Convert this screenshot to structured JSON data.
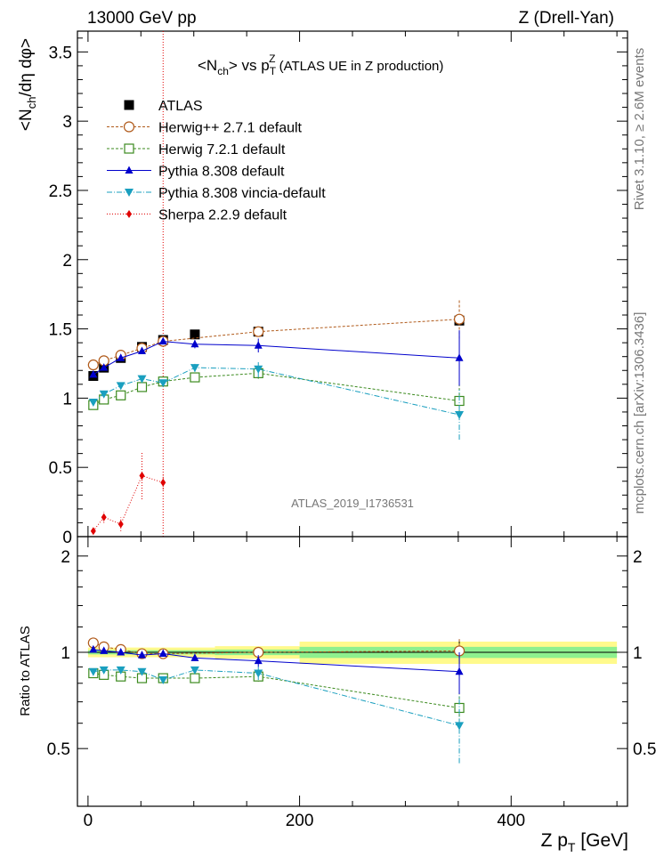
{
  "header": {
    "left": "13000 GeV pp",
    "right": "Z (Drell-Yan)"
  },
  "side_labels": {
    "rivet": "Rivet 3.1.10, ≥ 2.6M events",
    "mcplots": "mcplots.cern.ch [arXiv:1306.3436]"
  },
  "chart_data": [
    {
      "type": "scatter",
      "title": "<N_ch> vs p_T^Z (ATLAS UE in Z production)",
      "title_parts": {
        "a": "<N",
        "a_sub": "ch",
        "b": "> vs p",
        "b_sub": "T",
        "b_sup": "Z",
        "c": " (ATLAS UE in Z production)"
      },
      "ylabel": "<N_ch/dη dφ>",
      "ylabel_parts": {
        "a": "<N",
        "a_sub": "ch",
        "b": "/dη dφ>"
      },
      "analysis_label": "ATLAS_2019_I1736531",
      "xlim": [
        -10,
        510
      ],
      "ylim": [
        0,
        3.65
      ],
      "yticks": [
        "3.5",
        "3",
        "2.5",
        "2",
        "1.5",
        "1",
        "0.5",
        "0"
      ],
      "ytick_values": [
        3.5,
        3,
        2.5,
        2,
        1.5,
        1,
        0.5,
        0
      ],
      "grid": false,
      "legend_position": "top-left",
      "series": [
        {
          "name": "ATLAS",
          "color": "#000000",
          "marker": "square-filled",
          "line": "none",
          "x": [
            5,
            15,
            31,
            51,
            71,
            101,
            161,
            351
          ],
          "y": [
            1.16,
            1.22,
            1.29,
            1.37,
            1.42,
            1.46,
            1.48,
            1.56
          ]
        },
        {
          "name": "Herwig++ 2.7.1 default",
          "color": "#b05a1a",
          "marker": "circle-open",
          "line": "dashed",
          "x": [
            5,
            15,
            31,
            51,
            71,
            161,
            351
          ],
          "y": [
            1.24,
            1.27,
            1.31,
            1.36,
            1.41,
            1.48,
            1.57
          ],
          "yerr": [
            0.01,
            0.01,
            0.01,
            0.01,
            0.01,
            0.03,
            0.14
          ]
        },
        {
          "name": "Herwig 7.2.1 default",
          "color": "#3b8a1e",
          "marker": "square-open",
          "line": "dashed",
          "x": [
            5,
            15,
            31,
            51,
            71,
            101,
            161,
            351
          ],
          "y": [
            0.95,
            0.99,
            1.02,
            1.08,
            1.12,
            1.15,
            1.18,
            0.98
          ],
          "yerr": [
            0.01,
            0.01,
            0.01,
            0.01,
            0.01,
            0.02,
            0.04,
            0.12
          ]
        },
        {
          "name": "Pythia 8.308 default",
          "color": "#0000cc",
          "marker": "triangle-up",
          "line": "solid",
          "x": [
            5,
            15,
            31,
            51,
            71,
            101,
            161,
            351
          ],
          "y": [
            1.17,
            1.22,
            1.29,
            1.34,
            1.41,
            1.39,
            1.38,
            1.29
          ],
          "yerr": [
            0.01,
            0.01,
            0.01,
            0.01,
            0.01,
            0.03,
            0.05,
            0.2
          ]
        },
        {
          "name": "Pythia 8.308 vincia-default",
          "color": "#1a9fbf",
          "marker": "triangle-down",
          "line": "dashdot",
          "x": [
            5,
            15,
            31,
            51,
            71,
            101,
            161,
            351
          ],
          "y": [
            0.97,
            1.03,
            1.09,
            1.14,
            1.11,
            1.22,
            1.21,
            0.88
          ],
          "yerr": [
            0.01,
            0.01,
            0.01,
            0.01,
            0.02,
            0.03,
            0.06,
            0.18
          ]
        },
        {
          "name": "Sherpa 2.2.9 default",
          "color": "#e00000",
          "marker": "diamond-filled",
          "line": "dotted",
          "x": [
            5,
            15,
            31,
            51,
            71
          ],
          "y": [
            0.04,
            0.14,
            0.09,
            0.44,
            0.39
          ],
          "yerr": [
            0.02,
            0.04,
            0.05,
            0.17,
            0.05
          ]
        }
      ]
    },
    {
      "type": "scatter",
      "title": "",
      "ylabel": "Ratio to ATLAS",
      "xlabel": "Z p_T [GeV]",
      "xlabel_parts": {
        "a": "Z p",
        "a_sub": "T",
        "b": " [GeV]"
      },
      "xlim": [
        -10,
        510
      ],
      "ylim": [
        0.33,
        2.3
      ],
      "xticks": [
        "0",
        "200",
        "400"
      ],
      "xtick_values": [
        0,
        200,
        400
      ],
      "yticks": [
        "2",
        "1",
        "0.5"
      ],
      "ytick_values": [
        2,
        1,
        0.5
      ],
      "grid": false,
      "bands": [
        {
          "x0": 0,
          "x1": 120,
          "inner": 0.015,
          "outer": 0.035
        },
        {
          "x0": 120,
          "x1": 200,
          "inner": 0.02,
          "outer": 0.045
        },
        {
          "x0": 200,
          "x1": 500,
          "inner": 0.04,
          "outer": 0.08
        }
      ],
      "band_colors": {
        "inner": "#8ef08e",
        "outer": "#fffa8c"
      },
      "series": [
        {
          "name": "Herwig++ 2.7.1 default",
          "x": [
            5,
            15,
            31,
            51,
            71,
            161,
            351
          ],
          "y": [
            1.07,
            1.04,
            1.02,
            0.99,
            0.99,
            1.0,
            1.01
          ],
          "yerr": [
            0.01,
            0.01,
            0.01,
            0.01,
            0.01,
            0.02,
            0.09
          ]
        },
        {
          "name": "Herwig 7.2.1 default",
          "x": [
            5,
            15,
            31,
            51,
            71,
            101,
            161,
            351
          ],
          "y": [
            0.86,
            0.85,
            0.84,
            0.83,
            0.83,
            0.83,
            0.84,
            0.67
          ],
          "yerr": [
            0.01,
            0.01,
            0.01,
            0.01,
            0.01,
            0.02,
            0.03,
            0.08
          ]
        },
        {
          "name": "Pythia 8.308 default",
          "x": [
            5,
            15,
            31,
            51,
            71,
            101,
            161,
            351
          ],
          "y": [
            1.02,
            1.01,
            1.0,
            0.98,
            0.99,
            0.96,
            0.94,
            0.87
          ],
          "yerr": [
            0.01,
            0.01,
            0.01,
            0.01,
            0.01,
            0.02,
            0.04,
            0.13
          ]
        },
        {
          "name": "Pythia 8.308 vincia-default",
          "x": [
            5,
            15,
            31,
            51,
            71,
            101,
            161,
            351
          ],
          "y": [
            0.87,
            0.88,
            0.88,
            0.87,
            0.82,
            0.88,
            0.86,
            0.59
          ],
          "yerr": [
            0.01,
            0.01,
            0.01,
            0.01,
            0.01,
            0.02,
            0.04,
            0.14
          ]
        }
      ]
    }
  ]
}
